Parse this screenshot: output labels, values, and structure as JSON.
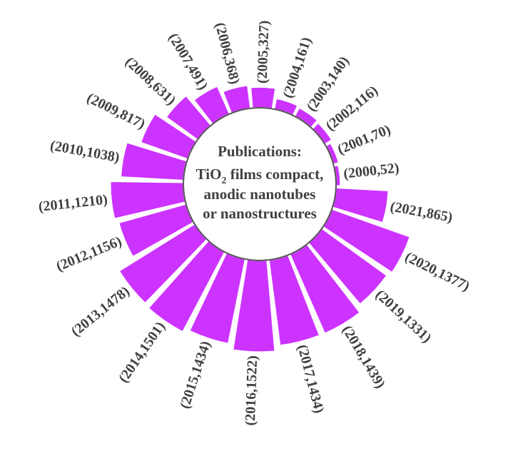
{
  "chart_data": {
    "type": "radial-bar",
    "title_lines": [
      "Publications:",
      "TiO2 films compact,",
      "anodic nanotubes",
      "or nanostructures"
    ],
    "title_parts": {
      "line2_prefix": "TiO",
      "line2_sub": "2",
      "line2_suffix": " films compact,"
    },
    "bar_color": "#cc33ff",
    "labels": [
      "(2000,52)",
      "(2001,70)",
      "(2002,116)",
      "(2003,140)",
      "(2004,161)",
      "(2005,327)",
      "(2006,368)",
      "(2007,491)",
      "(2008,631)",
      "(2009,817)",
      "(2010,1038)",
      "(2011,1210)",
      "(2012,1156)",
      "(2013,1478)",
      "(2014,1501)",
      "(2015,1434)",
      "(2016,1522)",
      "(2017,1434)",
      "(2018,1439)",
      "(2019,1331)",
      "(2020,1377)",
      "(2021,865)"
    ],
    "years": [
      2000,
      2001,
      2002,
      2003,
      2004,
      2005,
      2006,
      2007,
      2008,
      2009,
      2010,
      2011,
      2012,
      2013,
      2014,
      2015,
      2016,
      2017,
      2018,
      2019,
      2020,
      2021
    ],
    "values": [
      52,
      70,
      116,
      140,
      161,
      327,
      368,
      491,
      631,
      817,
      1038,
      1210,
      1156,
      1478,
      1501,
      1434,
      1522,
      1434,
      1439,
      1331,
      1377,
      865
    ]
  }
}
